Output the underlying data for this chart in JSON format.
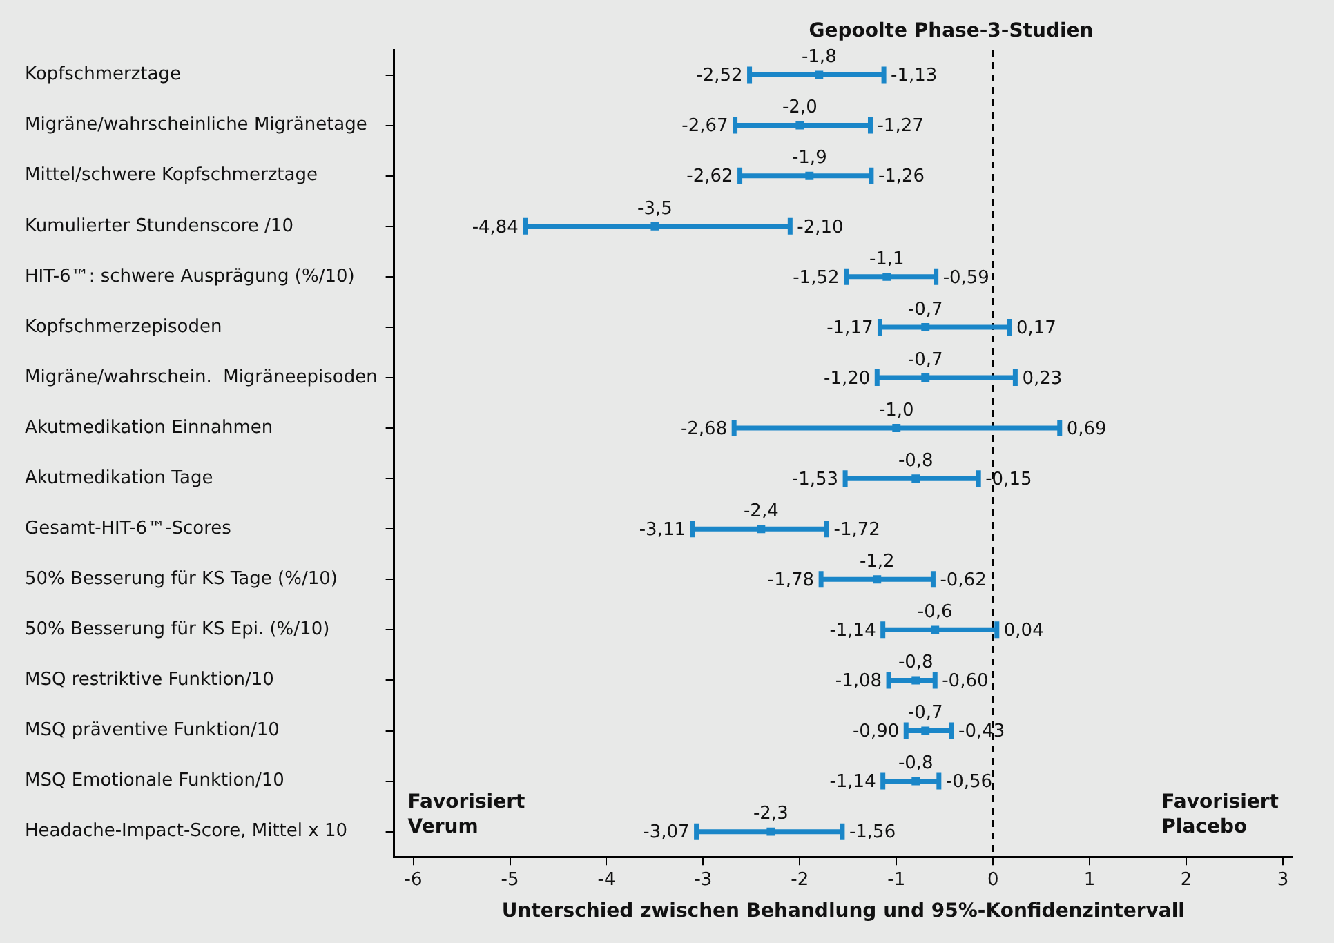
{
  "chart_data": {
    "type": "scatter",
    "orientation": "horizontal",
    "title": "Gepoolte Phase-3-Studien",
    "xlabel": "Unterschied zwischen Behandlung und 95%-Konfidenzintervall",
    "categories": [
      "Kopfschmerztage",
      "Migräne/wahrscheinliche Migränetage",
      "Mittel/schwere Kopfschmerztage",
      "Kumulierter Stundenscore /10",
      "HIT-6™: schwere Ausprägung (%/10)",
      "Kopfschmerzepisoden",
      "Migräne/wahrschein.  Migräneepisoden",
      "Akutmedikation Einnahmen",
      "Akutmedikation Tage",
      "Gesamt-HIT-6™-Scores",
      "50% Besserung für KS Tage (%/10)",
      "50% Besserung für KS Epi. (%/10)",
      "MSQ restriktive Funktion/10",
      "MSQ präventive Funktion/10",
      "MSQ Emotionale Funktion/10",
      "Headache-Impact-Score, Mittel x 10"
    ],
    "series": [
      {
        "color": "#1a86c8",
        "values": [
          -1.8,
          -2.0,
          -1.9,
          -3.5,
          -1.1,
          -0.7,
          -0.7,
          -1.0,
          -0.8,
          -2.4,
          -1.2,
          -0.6,
          -0.8,
          -0.7,
          -0.8,
          -2.3
        ],
        "value_labels": [
          "-1,8",
          "-2,0",
          "-1,9",
          "-3,5",
          "-1,1",
          "-0,7",
          "-0,7",
          "-1,0",
          "-0,8",
          "-2,4",
          "-1,2",
          "-0,6",
          "-0,8",
          "-0,7",
          "-0,8",
          "-2,3"
        ],
        "errors": [
          [
            -2.52,
            -1.13
          ],
          [
            -2.67,
            -1.27
          ],
          [
            -2.62,
            -1.26
          ],
          [
            -4.84,
            -2.1
          ],
          [
            -1.52,
            -0.59
          ],
          [
            -1.17,
            0.17
          ],
          [
            -1.2,
            0.23
          ],
          [
            -2.68,
            0.69
          ],
          [
            -1.53,
            -0.15
          ],
          [
            -3.11,
            -1.72
          ],
          [
            -1.78,
            -0.62
          ],
          [
            -1.14,
            0.04
          ],
          [
            -1.08,
            -0.6
          ],
          [
            -0.9,
            -0.43
          ],
          [
            -1.14,
            -0.56
          ],
          [
            -3.07,
            -1.56
          ]
        ]
      }
    ],
    "xlim": [
      -6.2,
      3.1
    ],
    "xticks": [
      -6,
      -5,
      -4,
      -3,
      -2,
      -1,
      0,
      1,
      2,
      3
    ],
    "grid": false,
    "legend": false,
    "marker": "square",
    "ref_lines": [
      {
        "axis": "x",
        "value": 0,
        "line_style": "dashed",
        "color": "#000000"
      }
    ],
    "annotations": [
      "Favorisiert Verum",
      "Favorisiert Placebo",
      {
        "text": "-2,52",
        "x": -2.52,
        "y": "Kopfschmerztage"
      },
      {
        "text": "-1,13",
        "x": -1.13,
        "y": "Kopfschmerztage"
      },
      {
        "text": "-2,67",
        "x": -2.67,
        "y": "Migräne/wahrscheinliche Migränetage"
      },
      {
        "text": "-1,27",
        "x": -1.27,
        "y": "Migräne/wahrscheinliche Migränetage"
      },
      {
        "text": "-2,62",
        "x": -2.62,
        "y": "Mittel/schwere Kopfschmerztage"
      },
      {
        "text": "-1,26",
        "x": -1.26,
        "y": "Mittel/schwere Kopfschmerztage"
      },
      {
        "text": "-4,84",
        "x": -4.84,
        "y": "Kumulierter Stundenscore /10"
      },
      {
        "text": "-2,10",
        "x": -2.1,
        "y": "Kumulierter Stundenscore /10"
      },
      {
        "text": "-1,52",
        "x": -1.52,
        "y": "HIT-6™: schwere Ausprägung (%/10)"
      },
      {
        "text": "-0,59",
        "x": -0.59,
        "y": "HIT-6™: schwere Ausprägung (%/10)"
      },
      {
        "text": "-1,17",
        "x": -1.17,
        "y": "Kopfschmerzepisoden"
      },
      {
        "text": "0,17",
        "x": 0.17,
        "y": "Kopfschmerzepisoden"
      },
      {
        "text": "-1,20",
        "x": -1.2,
        "y": "Migräne/wahrschein.  Migräneepisoden"
      },
      {
        "text": "0,23",
        "x": 0.23,
        "y": "Migräne/wahrschein.  Migräneepisoden"
      },
      {
        "text": "-2,68",
        "x": -2.68,
        "y": "Akutmedikation Einnahmen"
      },
      {
        "text": "0,69",
        "x": 0.69,
        "y": "Akutmedikation Einnahmen"
      },
      {
        "text": "-1,53",
        "x": -1.53,
        "y": "Akutmedikation Tage"
      },
      {
        "text": "-0,15",
        "x": -0.15,
        "y": "Akutmedikation Tage"
      },
      {
        "text": "-3,11",
        "x": -3.11,
        "y": "Gesamt-HIT-6™-Scores"
      },
      {
        "text": "-1,72",
        "x": -1.72,
        "y": "Gesamt-HIT-6™-Scores"
      },
      {
        "text": "-1,78",
        "x": -1.78,
        "y": "50% Besserung für KS Tage (%/10)"
      },
      {
        "text": "-0,62",
        "x": -0.62,
        "y": "50% Besserung für KS Tage (%/10)"
      },
      {
        "text": "-1,14",
        "x": -1.14,
        "y": "50% Besserung für KS Epi. (%/10)"
      },
      {
        "text": "0,04",
        "x": 0.04,
        "y": "50% Besserung für KS Epi. (%/10)"
      },
      {
        "text": "-1,08",
        "x": -1.08,
        "y": "MSQ restriktive Funktion/10"
      },
      {
        "text": "-0,60",
        "x": -0.6,
        "y": "MSQ restriktive Funktion/10"
      },
      {
        "text": "-0,90",
        "x": -0.9,
        "y": "MSQ präventive Funktion/10"
      },
      {
        "text": "-0,43",
        "x": -0.43,
        "y": "MSQ präventive Funktion/10"
      },
      {
        "text": "-1,14",
        "x": -1.14,
        "y": "MSQ Emotionale Funktion/10"
      },
      {
        "text": "-0,56",
        "x": -0.56,
        "y": "MSQ Emotionale Funktion/10"
      },
      {
        "text": "-3,07",
        "x": -3.07,
        "y": "Headache-Impact-Score, Mittel x 10"
      },
      {
        "text": "-1,56",
        "x": -1.56,
        "y": "Headache-Impact-Score, Mittel x 10"
      }
    ]
  }
}
